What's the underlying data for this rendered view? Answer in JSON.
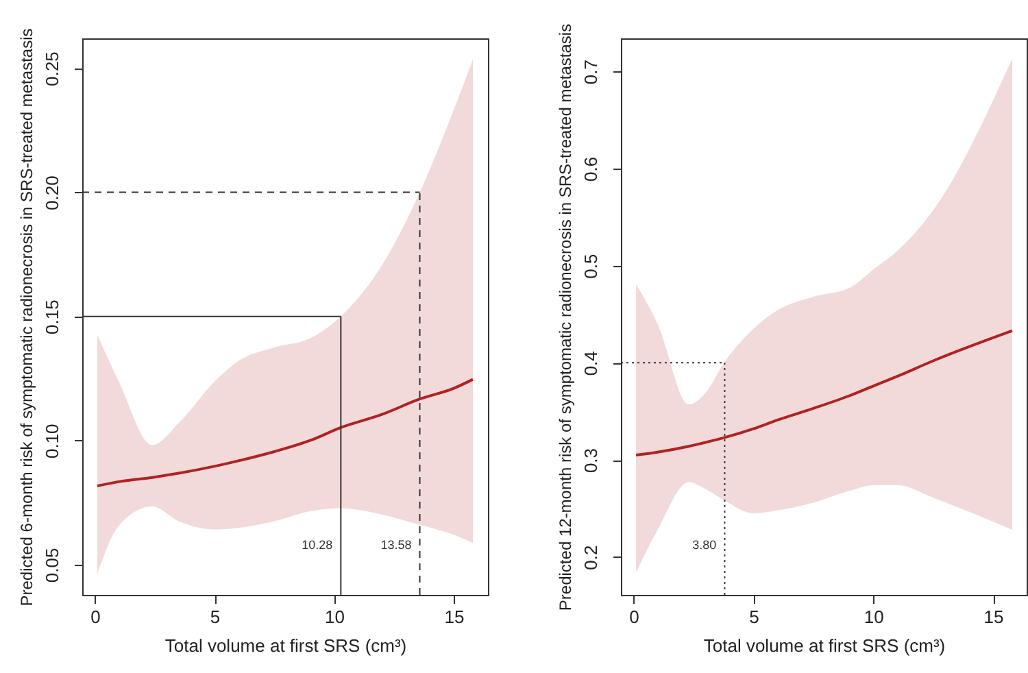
{
  "chart_data": [
    {
      "type": "line",
      "xlabel": "Total volume at first SRS (cm³)",
      "ylabel": "Predicted 6-month risk of symptomatic radionecrosis in SRS-treated metastasis",
      "xlim": [
        -0.53,
        16.43
      ],
      "xticks": [
        0,
        5,
        10,
        15
      ],
      "ylim": [
        0.0378,
        0.262
      ],
      "yticks": [
        0.05,
        {
          "value": 0.1,
          "label": "0.10"
        },
        0.15,
        {
          "value": 0.2,
          "label": "0.20"
        },
        0.25
      ],
      "series": [
        {
          "color": "#b22222",
          "x": [
            0.1,
            1,
            2.4,
            3.5,
            5,
            6,
            7.5,
            9,
            10.28,
            12,
            13.58,
            15,
            15.8
          ],
          "values": [
            0.0817,
            0.0834,
            0.0851,
            0.0868,
            0.0896,
            0.0918,
            0.0955,
            0.1,
            0.1052,
            0.1105,
            0.1167,
            0.121,
            0.1246
          ],
          "lower": [
            0.0463,
            0.0657,
            0.0734,
            0.0675,
            0.0642,
            0.0648,
            0.0675,
            0.0715,
            0.0727,
            0.0702,
            0.066,
            0.062,
            0.0587
          ],
          "upper": [
            0.1425,
            0.1237,
            0.0982,
            0.107,
            0.1237,
            0.132,
            0.1375,
            0.1412,
            0.15,
            0.1706,
            0.2,
            0.2332,
            0.2535
          ]
        }
      ],
      "ref_lines": [
        {
          "axis": "y",
          "value": 0.15,
          "color": "#333333",
          "line_style": "solid"
        },
        {
          "axis": "y",
          "value": 0.2,
          "color": "#333333",
          "line_style": "dashed"
        },
        {
          "axis": "x",
          "value": 10.28,
          "label": "10.28",
          "color": "#333333",
          "line_style": "solid"
        },
        {
          "axis": "x",
          "value": 13.58,
          "label": "13.58",
          "color": "#333333",
          "line_style": "dashed"
        }
      ]
    },
    {
      "type": "line",
      "xlabel": "Total volume at first SRS (cm³)",
      "ylabel": "Predicted 12-month risk of symptomatic radionecrosis in  SRS-treated metastasis",
      "xlim": [
        -0.53,
        16.4
      ],
      "xticks": [
        0,
        5,
        10,
        15
      ],
      "ylim": [
        0.161,
        0.734
      ],
      "yticks": [
        0.2,
        0.3,
        0.4,
        0.5,
        0.6,
        0.7
      ],
      "series": [
        {
          "color": "#b22222",
          "x": [
            0.1,
            1,
            2.3,
            3,
            3.8,
            5,
            6,
            7.5,
            9,
            10,
            11,
            12.5,
            15.8
          ],
          "values": [
            0.305,
            0.308,
            0.314,
            0.318,
            0.323,
            0.332,
            0.341,
            0.353,
            0.366,
            0.376,
            0.386,
            0.402,
            0.433
          ],
          "lower": [
            0.184,
            0.228,
            0.277,
            0.27,
            0.258,
            0.245,
            0.248,
            0.256,
            0.268,
            0.274,
            0.274,
            0.261,
            0.228
          ],
          "upper": [
            0.481,
            0.44,
            0.357,
            0.369,
            0.401,
            0.435,
            0.454,
            0.468,
            0.477,
            0.496,
            0.515,
            0.557,
            0.713
          ]
        }
      ],
      "ref_lines": [
        {
          "axis": "y",
          "value": 0.4,
          "color": "#333333",
          "line_style": "dotted"
        },
        {
          "axis": "x",
          "value": 3.8,
          "label": "3.80",
          "color": "#333333",
          "line_style": "dotted"
        }
      ]
    }
  ]
}
